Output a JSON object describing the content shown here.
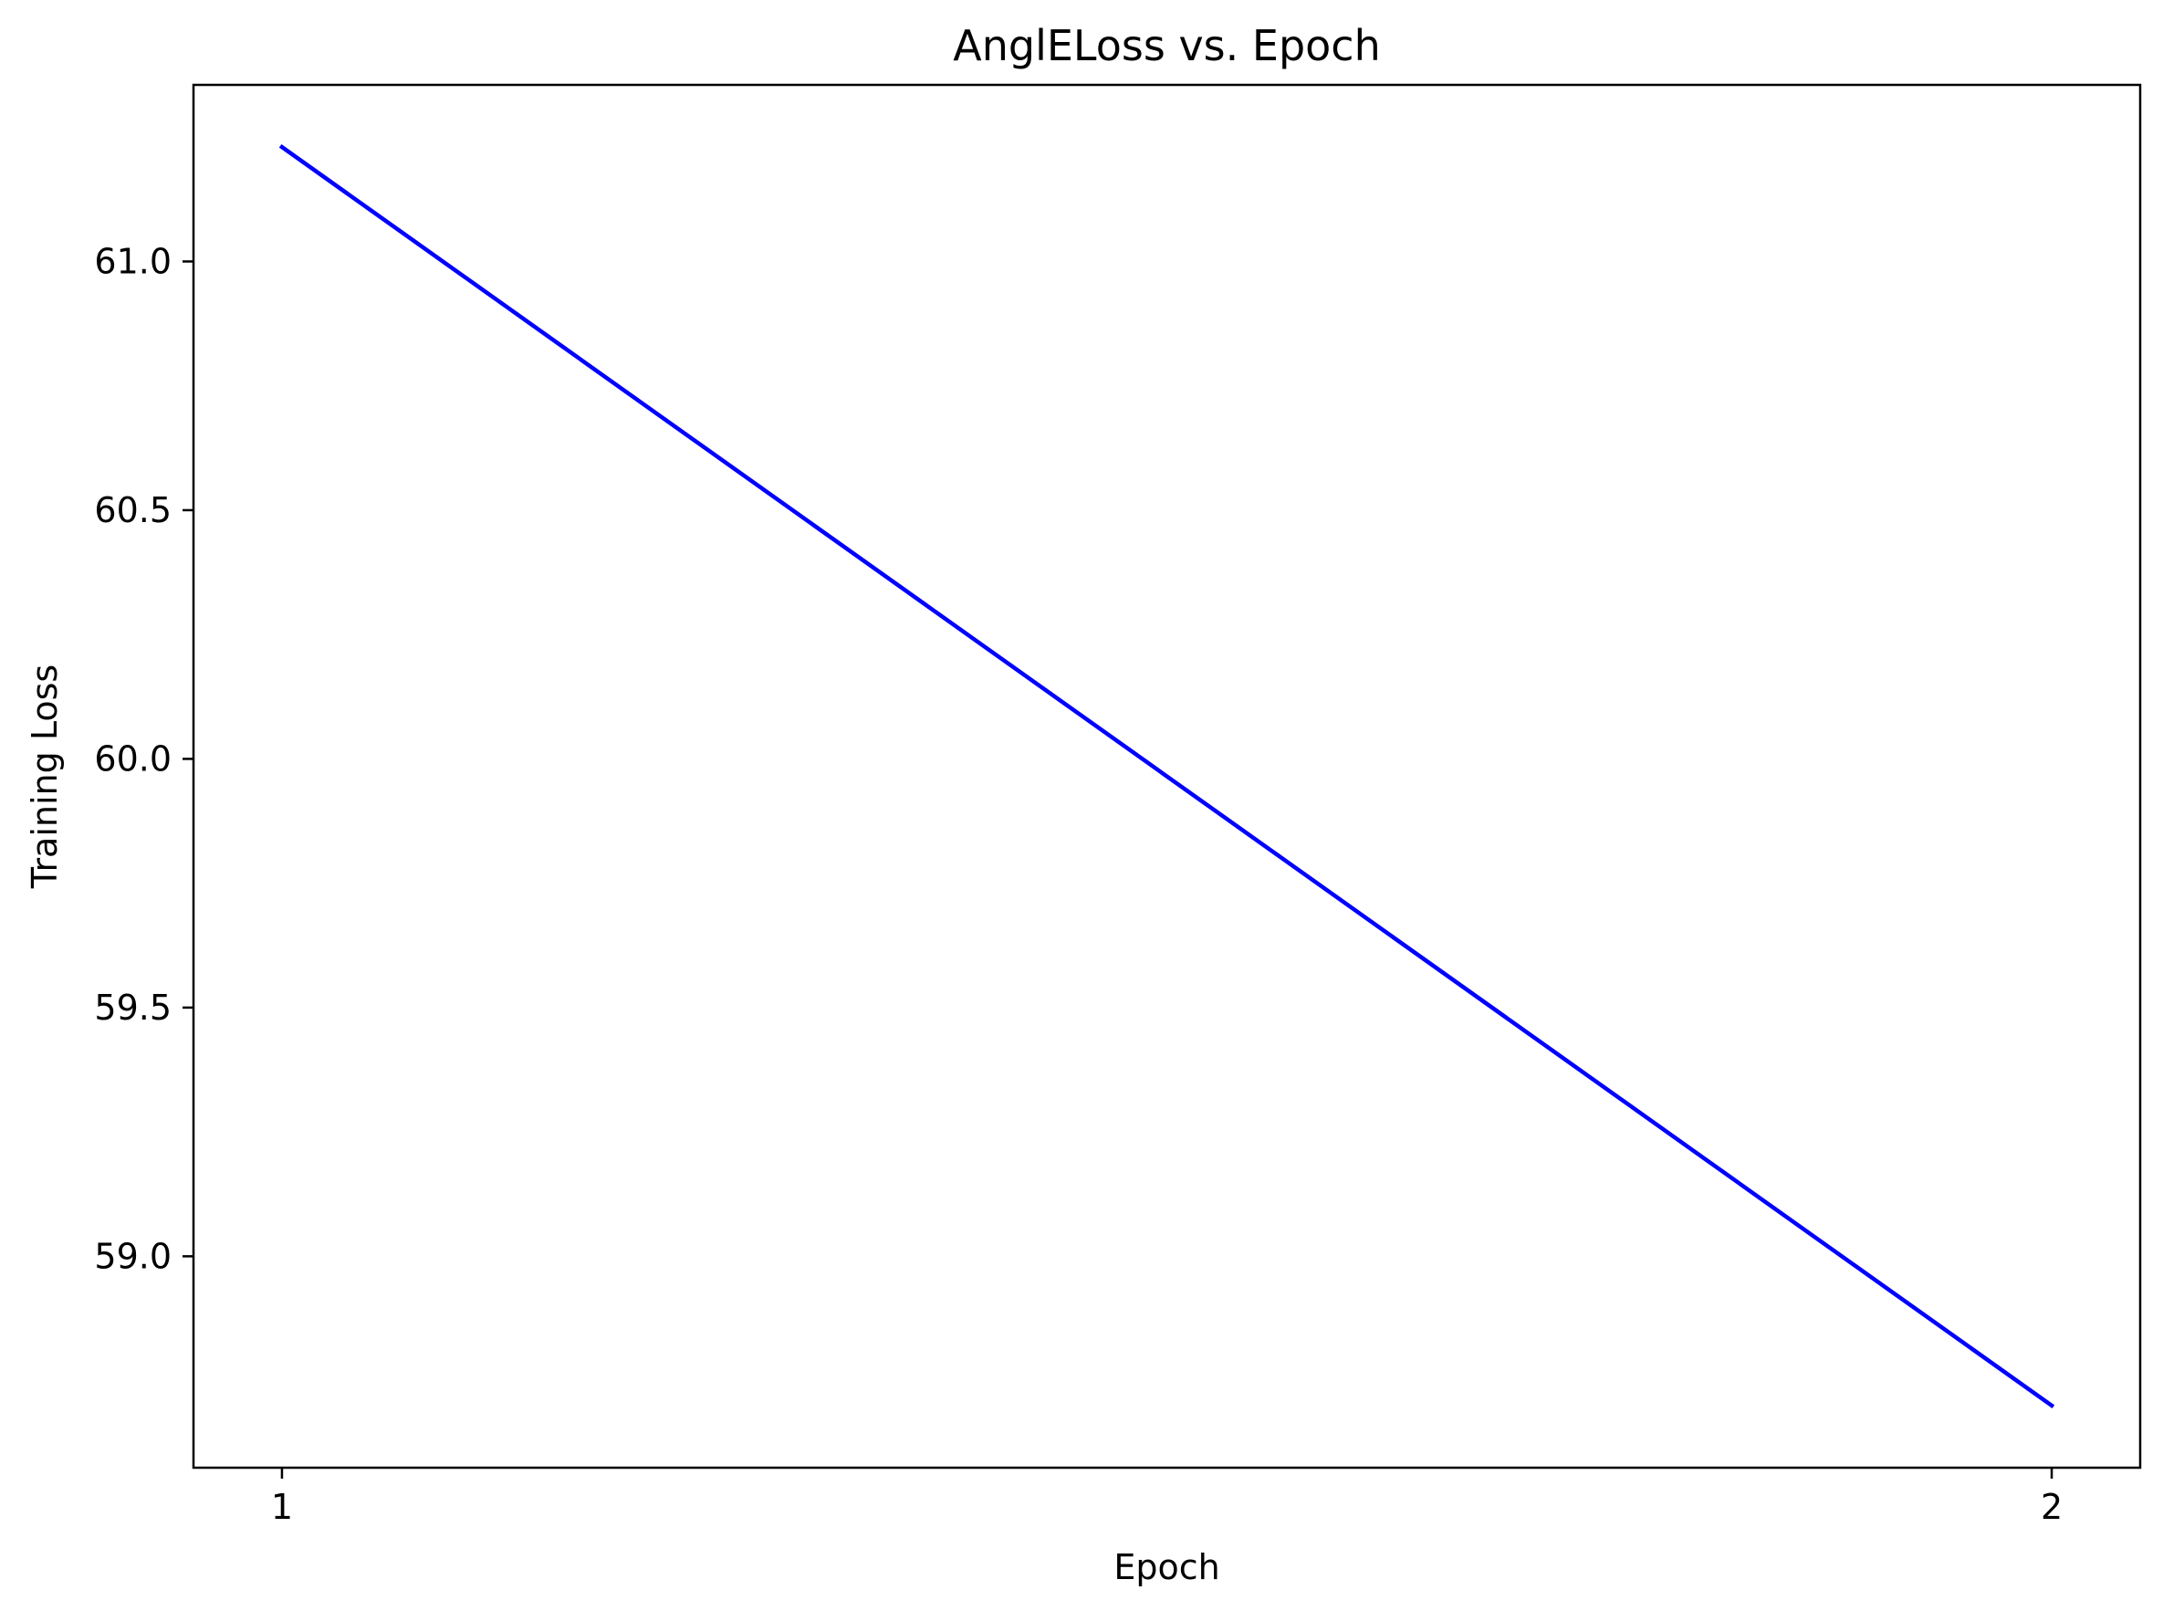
{
  "chart_data": {
    "type": "line",
    "title": "AnglELoss vs. Epoch",
    "xlabel": "Epoch",
    "ylabel": "Training Loss",
    "x": [
      1,
      2
    ],
    "series": [
      {
        "values": [
          61.23,
          58.7
        ],
        "color": "#0000ff"
      }
    ],
    "xticks": [
      1,
      2
    ],
    "xtick_labels": [
      "1",
      "2"
    ],
    "yticks": [
      59.0,
      59.5,
      60.0,
      60.5,
      61.0
    ],
    "ytick_labels": [
      "59.0",
      "59.5",
      "60.0",
      "60.5",
      "61.0"
    ],
    "xlim": [
      0.95,
      2.05
    ],
    "ylim": [
      58.575,
      61.355
    ],
    "grid": false,
    "legend": false
  }
}
